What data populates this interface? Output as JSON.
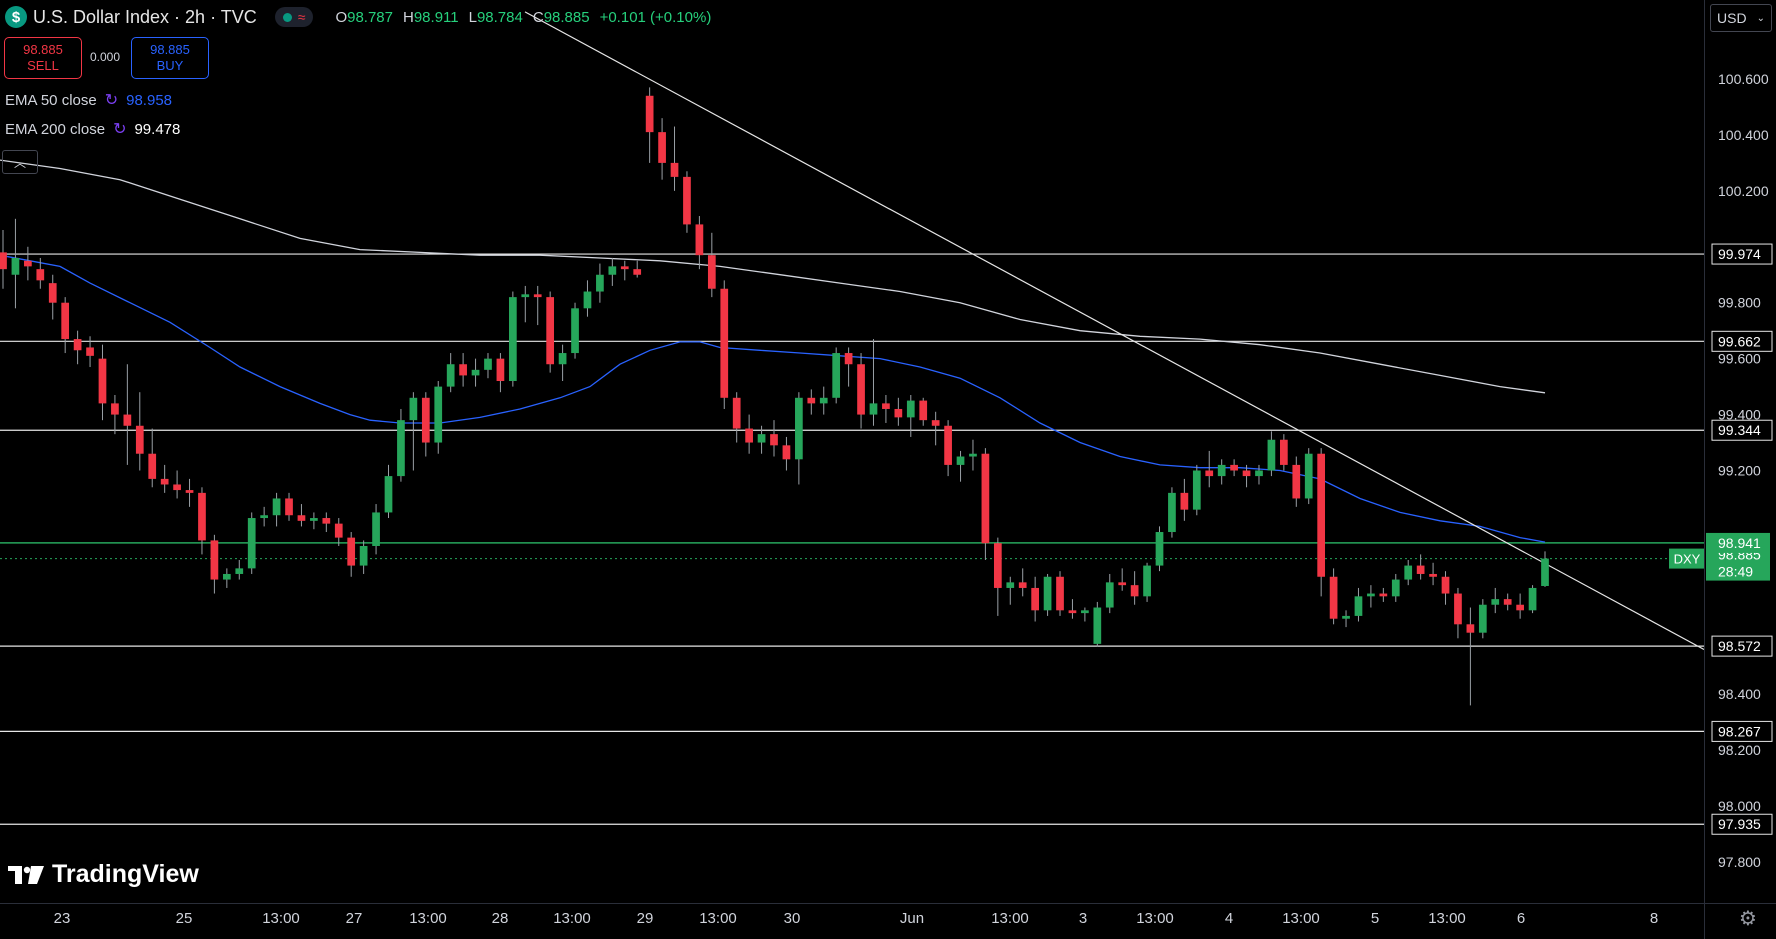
{
  "header": {
    "symbol_icon": "$",
    "title": "U.S. Dollar Index · 2h · TVC",
    "status_wave": "≈",
    "ohlc": {
      "o_label": "O",
      "o": "98.787",
      "h_label": "H",
      "h": "98.911",
      "l_label": "L",
      "l": "98.784",
      "c_label": "C",
      "c": "98.885",
      "change": "+0.101 (+0.10%)"
    }
  },
  "trade": {
    "sell_price": "98.885",
    "sell_label": "SELL",
    "spread": "0.000",
    "buy_price": "98.885",
    "buy_label": "BUY"
  },
  "indicators": [
    {
      "label": "EMA 50 close",
      "value": "98.958",
      "color": "#2962ff"
    },
    {
      "label": "EMA 200 close",
      "value": "99.478",
      "color": "#ffffff"
    }
  ],
  "currency": "USD",
  "brand": "TradingView",
  "colors": {
    "up": "#26a65b",
    "down": "#f23645",
    "ema50": "#2962ff",
    "ema200": "#d1d4dc",
    "bg": "#000000"
  },
  "chart_data": {
    "type": "candlestick",
    "ylim": [
      97.8,
      100.6
    ],
    "y_ticks": [
      97.8,
      98.0,
      98.2,
      98.4,
      99.2,
      99.4,
      99.6,
      99.8,
      100.2,
      100.4,
      100.6
    ],
    "x_ticks": [
      "23",
      "25",
      "13:00",
      "27",
      "13:00",
      "28",
      "13:00",
      "29",
      "13:00",
      "30",
      "Jun",
      "13:00",
      "3",
      "13:00",
      "4",
      "13:00",
      "5",
      "13:00",
      "6",
      "8"
    ],
    "horizontal_levels": [
      99.974,
      99.662,
      99.344,
      98.572,
      98.267,
      97.935
    ],
    "current_price": {
      "symbol": "DXY",
      "value": "98.885",
      "countdown": "28:49"
    },
    "ema50_tag": "98.941",
    "trendline": {
      "from": {
        "date": "May 29",
        "price": 100.54
      },
      "to": {
        "date": "Jun 8",
        "price": 98.56
      }
    },
    "candles": [
      [
        99.98,
        100.06,
        99.85,
        99.92
      ],
      [
        99.9,
        100.1,
        99.78,
        99.96
      ],
      [
        99.95,
        100.0,
        99.88,
        99.93
      ],
      [
        99.92,
        99.96,
        99.85,
        99.88
      ],
      [
        99.87,
        99.9,
        99.74,
        99.8
      ],
      [
        99.8,
        99.82,
        99.62,
        99.67
      ],
      [
        99.67,
        99.7,
        99.58,
        99.63
      ],
      [
        99.64,
        99.68,
        99.57,
        99.61
      ],
      [
        99.6,
        99.65,
        99.38,
        99.44
      ],
      [
        99.44,
        99.47,
        99.33,
        99.4
      ],
      [
        99.4,
        99.58,
        99.22,
        99.36
      ],
      [
        99.36,
        99.48,
        99.2,
        99.26
      ],
      [
        99.26,
        99.35,
        99.14,
        99.17
      ],
      [
        99.17,
        99.22,
        99.12,
        99.15
      ],
      [
        99.15,
        99.2,
        99.1,
        99.13
      ],
      [
        99.13,
        99.17,
        99.07,
        99.12
      ],
      [
        99.12,
        99.14,
        98.9,
        98.95
      ],
      [
        98.95,
        98.97,
        98.76,
        98.81
      ],
      [
        98.81,
        98.85,
        98.78,
        98.83
      ],
      [
        98.83,
        98.88,
        98.81,
        98.85
      ],
      [
        98.85,
        99.05,
        98.83,
        99.03
      ],
      [
        99.03,
        99.07,
        99.0,
        99.04
      ],
      [
        99.04,
        99.12,
        99.0,
        99.1
      ],
      [
        99.1,
        99.12,
        99.02,
        99.04
      ],
      [
        99.04,
        99.08,
        99.0,
        99.02
      ],
      [
        99.02,
        99.05,
        98.99,
        99.03
      ],
      [
        99.03,
        99.05,
        98.98,
        99.01
      ],
      [
        99.01,
        99.03,
        98.93,
        98.96
      ],
      [
        98.96,
        98.98,
        98.82,
        98.86
      ],
      [
        98.86,
        98.95,
        98.83,
        98.93
      ],
      [
        98.93,
        99.08,
        98.9,
        99.05
      ],
      [
        99.05,
        99.22,
        99.03,
        99.18
      ],
      [
        99.18,
        99.42,
        99.16,
        99.38
      ],
      [
        99.38,
        99.48,
        99.2,
        99.46
      ],
      [
        99.46,
        99.48,
        99.25,
        99.3
      ],
      [
        99.3,
        99.52,
        99.26,
        99.5
      ],
      [
        99.5,
        99.62,
        99.48,
        99.58
      ],
      [
        99.58,
        99.62,
        99.5,
        99.54
      ],
      [
        99.54,
        99.6,
        99.5,
        99.56
      ],
      [
        99.56,
        99.62,
        99.53,
        99.6
      ],
      [
        99.6,
        99.62,
        99.48,
        99.52
      ],
      [
        99.52,
        99.84,
        99.5,
        99.82
      ],
      [
        99.82,
        99.86,
        99.73,
        99.83
      ],
      [
        99.83,
        99.86,
        99.72,
        99.82
      ],
      [
        99.82,
        99.84,
        99.55,
        99.58
      ],
      [
        99.58,
        99.65,
        99.52,
        99.62
      ],
      [
        99.62,
        99.8,
        99.6,
        99.78
      ],
      [
        99.78,
        99.88,
        99.75,
        99.84
      ],
      [
        99.84,
        99.94,
        99.8,
        99.9
      ],
      [
        99.9,
        99.96,
        99.86,
        99.93
      ],
      [
        99.93,
        99.95,
        99.88,
        99.92
      ],
      [
        99.92,
        99.95,
        99.89,
        99.9
      ],
      [
        100.54,
        100.57,
        100.3,
        100.41
      ],
      [
        100.41,
        100.46,
        100.24,
        100.3
      ],
      [
        100.3,
        100.43,
        100.2,
        100.25
      ],
      [
        100.25,
        100.27,
        100.05,
        100.08
      ],
      [
        100.08,
        100.11,
        99.92,
        99.97
      ],
      [
        99.97,
        100.05,
        99.82,
        99.85
      ],
      [
        99.85,
        99.88,
        99.42,
        99.46
      ],
      [
        99.46,
        99.48,
        99.3,
        99.35
      ],
      [
        99.35,
        99.4,
        99.26,
        99.3
      ],
      [
        99.3,
        99.36,
        99.26,
        99.33
      ],
      [
        99.33,
        99.38,
        99.25,
        99.29
      ],
      [
        99.29,
        99.32,
        99.2,
        99.24
      ],
      [
        99.24,
        99.48,
        99.15,
        99.46
      ],
      [
        99.46,
        99.49,
        99.4,
        99.44
      ],
      [
        99.44,
        99.5,
        99.4,
        99.46
      ],
      [
        99.46,
        99.64,
        99.44,
        99.62
      ],
      [
        99.62,
        99.64,
        99.5,
        99.58
      ],
      [
        99.58,
        99.62,
        99.35,
        99.4
      ],
      [
        99.4,
        99.67,
        99.36,
        99.44
      ],
      [
        99.44,
        99.47,
        99.37,
        99.42
      ],
      [
        99.42,
        99.46,
        99.36,
        99.39
      ],
      [
        99.39,
        99.47,
        99.32,
        99.45
      ],
      [
        99.45,
        99.46,
        99.36,
        99.38
      ],
      [
        99.38,
        99.41,
        99.29,
        99.36
      ],
      [
        99.36,
        99.38,
        99.18,
        99.22
      ],
      [
        99.22,
        99.27,
        99.16,
        99.25
      ],
      [
        99.25,
        99.31,
        99.2,
        99.26
      ],
      [
        99.26,
        99.28,
        98.88,
        98.94
      ],
      [
        98.94,
        98.96,
        98.68,
        98.78
      ],
      [
        98.78,
        98.82,
        98.72,
        98.8
      ],
      [
        98.8,
        98.85,
        98.75,
        98.78
      ],
      [
        98.78,
        98.82,
        98.66,
        98.7
      ],
      [
        98.7,
        98.83,
        98.68,
        98.82
      ],
      [
        98.82,
        98.84,
        98.68,
        98.7
      ],
      [
        98.7,
        98.74,
        98.67,
        98.69
      ],
      [
        98.69,
        98.71,
        98.66,
        98.7
      ],
      [
        98.58,
        98.73,
        98.57,
        98.71
      ],
      [
        98.71,
        98.83,
        98.69,
        98.8
      ],
      [
        98.8,
        98.85,
        98.77,
        98.79
      ],
      [
        98.79,
        98.84,
        98.72,
        98.75
      ],
      [
        98.75,
        98.87,
        98.73,
        98.86
      ],
      [
        98.86,
        99.0,
        98.84,
        98.98
      ],
      [
        98.98,
        99.14,
        98.96,
        99.12
      ],
      [
        99.12,
        99.17,
        99.02,
        99.06
      ],
      [
        99.06,
        99.22,
        99.04,
        99.2
      ],
      [
        99.2,
        99.27,
        99.14,
        99.18
      ],
      [
        99.18,
        99.24,
        99.15,
        99.22
      ],
      [
        99.22,
        99.24,
        99.18,
        99.2
      ],
      [
        99.2,
        99.22,
        99.14,
        99.18
      ],
      [
        99.18,
        99.22,
        99.15,
        99.2
      ],
      [
        99.2,
        99.34,
        99.18,
        99.31
      ],
      [
        99.31,
        99.33,
        99.2,
        99.22
      ],
      [
        99.22,
        99.25,
        99.07,
        99.1
      ],
      [
        99.1,
        99.28,
        99.08,
        99.26
      ],
      [
        99.26,
        99.28,
        98.75,
        98.82
      ],
      [
        98.82,
        98.85,
        98.65,
        98.67
      ],
      [
        98.67,
        98.7,
        98.64,
        98.68
      ],
      [
        98.68,
        98.78,
        98.66,
        98.75
      ],
      [
        98.75,
        98.79,
        98.71,
        98.76
      ],
      [
        98.76,
        98.78,
        98.73,
        98.75
      ],
      [
        98.75,
        98.83,
        98.73,
        98.81
      ],
      [
        98.81,
        98.88,
        98.79,
        98.86
      ],
      [
        98.86,
        98.9,
        98.81,
        98.83
      ],
      [
        98.83,
        98.87,
        98.79,
        98.82
      ],
      [
        98.82,
        98.84,
        98.72,
        98.76
      ],
      [
        98.76,
        98.78,
        98.6,
        98.65
      ],
      [
        98.65,
        98.71,
        98.36,
        98.62
      ],
      [
        98.62,
        98.74,
        98.6,
        98.72
      ],
      [
        98.72,
        98.78,
        98.69,
        98.74
      ],
      [
        98.74,
        98.76,
        98.7,
        98.72
      ],
      [
        98.72,
        98.76,
        98.67,
        98.7
      ],
      [
        98.7,
        98.79,
        98.69,
        98.78
      ],
      [
        98.787,
        98.911,
        98.784,
        98.885
      ]
    ],
    "ema50": [
      [
        0,
        99.97
      ],
      [
        30,
        99.95
      ],
      [
        60,
        99.93
      ],
      [
        90,
        99.87
      ],
      [
        130,
        99.8
      ],
      [
        170,
        99.73
      ],
      [
        210,
        99.64
      ],
      [
        240,
        99.57
      ],
      [
        280,
        99.5
      ],
      [
        320,
        99.44
      ],
      [
        350,
        99.4
      ],
      [
        370,
        99.38
      ],
      [
        400,
        99.37
      ],
      [
        440,
        99.37
      ],
      [
        480,
        99.39
      ],
      [
        520,
        99.42
      ],
      [
        560,
        99.46
      ],
      [
        590,
        99.5
      ],
      [
        620,
        99.58
      ],
      [
        650,
        99.63
      ],
      [
        680,
        99.66
      ],
      [
        700,
        99.66
      ],
      [
        720,
        99.64
      ],
      [
        760,
        99.63
      ],
      [
        800,
        99.62
      ],
      [
        840,
        99.61
      ],
      [
        880,
        99.6
      ],
      [
        920,
        99.57
      ],
      [
        960,
        99.53
      ],
      [
        1000,
        99.46
      ],
      [
        1040,
        99.37
      ],
      [
        1080,
        99.3
      ],
      [
        1120,
        99.25
      ],
      [
        1160,
        99.22
      ],
      [
        1200,
        99.21
      ],
      [
        1240,
        99.21
      ],
      [
        1280,
        99.2
      ],
      [
        1320,
        99.17
      ],
      [
        1360,
        99.1
      ],
      [
        1400,
        99.05
      ],
      [
        1440,
        99.02
      ],
      [
        1480,
        99.0
      ],
      [
        1520,
        98.96
      ],
      [
        1545,
        98.944
      ]
    ],
    "ema200": [
      [
        0,
        100.31
      ],
      [
        60,
        100.28
      ],
      [
        120,
        100.24
      ],
      [
        180,
        100.17
      ],
      [
        240,
        100.1
      ],
      [
        300,
        100.03
      ],
      [
        360,
        99.99
      ],
      [
        420,
        99.98
      ],
      [
        480,
        99.97
      ],
      [
        540,
        99.97
      ],
      [
        600,
        99.96
      ],
      [
        660,
        99.95
      ],
      [
        720,
        99.93
      ],
      [
        780,
        99.9
      ],
      [
        840,
        99.87
      ],
      [
        900,
        99.84
      ],
      [
        960,
        99.8
      ],
      [
        1020,
        99.74
      ],
      [
        1080,
        99.7
      ],
      [
        1140,
        99.68
      ],
      [
        1200,
        99.67
      ],
      [
        1260,
        99.65
      ],
      [
        1320,
        99.62
      ],
      [
        1380,
        99.58
      ],
      [
        1440,
        99.54
      ],
      [
        1500,
        99.5
      ],
      [
        1545,
        99.478
      ]
    ]
  }
}
